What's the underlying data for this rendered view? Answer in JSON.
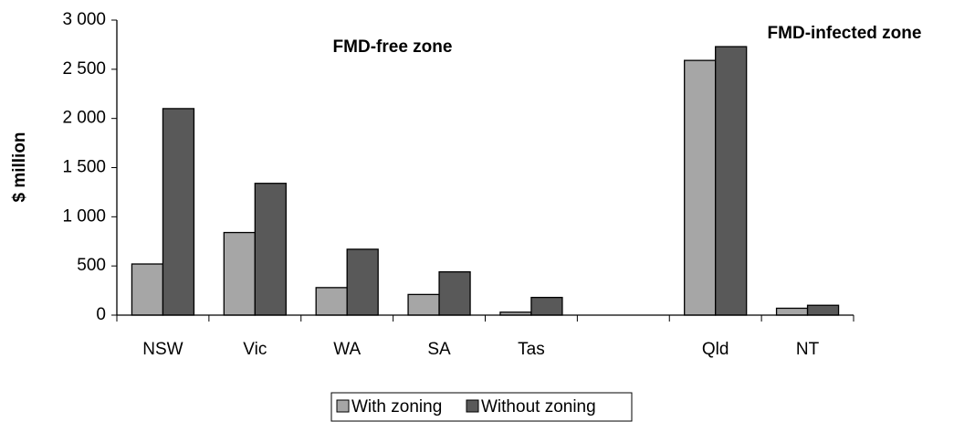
{
  "chart_data": {
    "type": "bar",
    "y_label": "$ million",
    "annotations": [
      "FMD-free zone",
      "FMD-infected zone"
    ],
    "categories": [
      "NSW",
      "Vic",
      "WA",
      "SA",
      "Tas",
      null,
      "Qld",
      "NT"
    ],
    "series": [
      {
        "name": "With zoning",
        "color": "#a6a6a6",
        "values": [
          520,
          840,
          280,
          210,
          30,
          null,
          2590,
          70
        ]
      },
      {
        "name": "Without zoning",
        "color": "#595959",
        "values": [
          2100,
          1340,
          670,
          440,
          180,
          null,
          2730,
          100
        ]
      }
    ],
    "ylim": [
      0,
      3000
    ],
    "yticks": [
      0,
      500,
      {
        "value": 1000,
        "label": "1 000"
      },
      {
        "value": 1500,
        "label": "1 500"
      },
      {
        "value": 2000,
        "label": "2 000"
      },
      {
        "value": 2500,
        "label": "2 500"
      },
      {
        "value": 3000,
        "label": "3 000"
      }
    ],
    "grid": false,
    "legend": "bottom"
  }
}
